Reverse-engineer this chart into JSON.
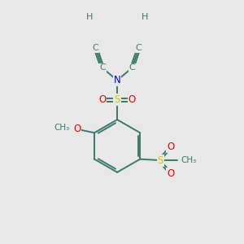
{
  "bg_color": "#e8e8e8",
  "atom_colors": {
    "C": "#3a7a6a",
    "H": "#3a7a6a",
    "N": "#0000ee",
    "O": "#ee0000",
    "S": "#cccc00"
  },
  "bond_color": "#3a7a6a",
  "line_width": 1.4,
  "figsize": [
    3.0,
    3.0
  ],
  "dpi": 100
}
